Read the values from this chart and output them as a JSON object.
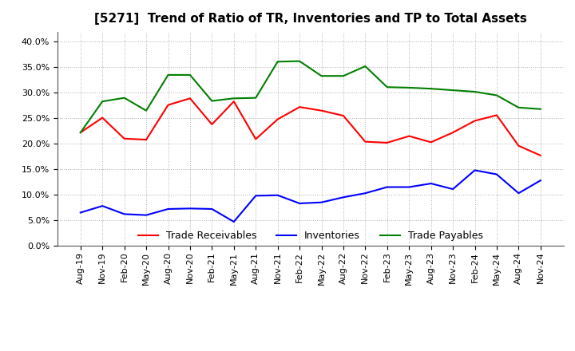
{
  "title": "[5271]  Trend of Ratio of TR, Inventories and TP to Total Assets",
  "x_labels": [
    "Aug-19",
    "Nov-19",
    "Feb-20",
    "May-20",
    "Aug-20",
    "Nov-20",
    "Feb-21",
    "May-21",
    "Aug-21",
    "Nov-21",
    "Feb-22",
    "May-22",
    "Aug-22",
    "Nov-22",
    "Feb-23",
    "May-23",
    "Aug-23",
    "Nov-23",
    "Feb-24",
    "May-24",
    "Aug-24",
    "Nov-24"
  ],
  "trade_receivables": [
    0.222,
    0.251,
    0.21,
    0.208,
    0.276,
    0.289,
    0.238,
    0.283,
    0.209,
    0.248,
    0.272,
    0.265,
    0.255,
    0.204,
    0.202,
    0.215,
    0.203,
    0.222,
    0.245,
    0.256,
    0.196,
    0.177
  ],
  "inventories": [
    0.065,
    0.078,
    0.062,
    0.06,
    0.072,
    0.073,
    0.072,
    0.047,
    0.098,
    0.099,
    0.083,
    0.085,
    0.095,
    0.103,
    0.115,
    0.115,
    0.122,
    0.111,
    0.148,
    0.14,
    0.103,
    0.128
  ],
  "trade_payables": [
    0.222,
    0.283,
    0.29,
    0.265,
    0.335,
    0.335,
    0.284,
    0.289,
    0.29,
    0.361,
    0.362,
    0.333,
    0.333,
    0.352,
    0.311,
    0.31,
    0.308,
    0.305,
    0.302,
    0.295,
    0.271,
    0.268
  ],
  "tr_color": "#ff0000",
  "inv_color": "#0000ff",
  "tp_color": "#008000",
  "ylim": [
    0.0,
    0.42
  ],
  "yticks": [
    0.0,
    0.05,
    0.1,
    0.15,
    0.2,
    0.25,
    0.3,
    0.35,
    0.4
  ],
  "bg_color": "#ffffff",
  "grid_color": "#b0b0b0",
  "title_fontsize": 11,
  "legend_fontsize": 9,
  "tick_fontsize": 8
}
